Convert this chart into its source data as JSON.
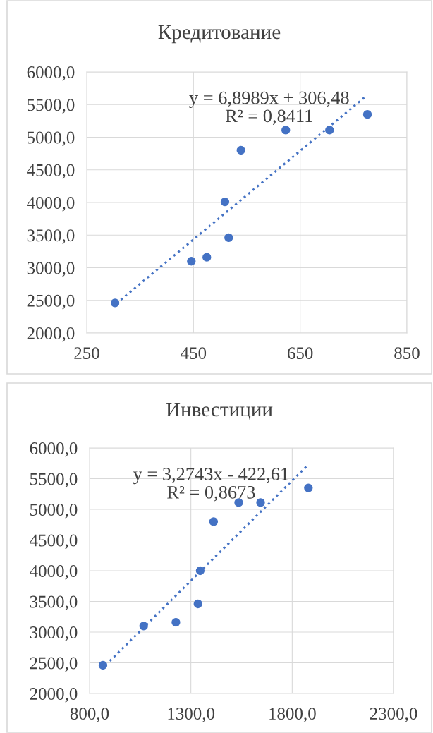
{
  "chart_data": [
    {
      "type": "scatter",
      "title": "Кредитование",
      "grid": true,
      "xlim": [
        250,
        850
      ],
      "xticks": [
        250,
        450,
        650,
        850
      ],
      "ylim": [
        2000,
        6000
      ],
      "yticks": [
        {
          "value": 2000,
          "label": "2000,0"
        },
        {
          "value": 2500,
          "label": "2500,0"
        },
        {
          "value": 3000,
          "label": "3000,0"
        },
        {
          "value": 3500,
          "label": "3500,0"
        },
        {
          "value": 4000,
          "label": "4000,0"
        },
        {
          "value": 4500,
          "label": "4500,0"
        },
        {
          "value": 5000,
          "label": "5000,0"
        },
        {
          "value": 5500,
          "label": "5500,0"
        },
        {
          "value": 6000,
          "label": "6000,0"
        }
      ],
      "series": [
        {
          "color": "#4472c4",
          "marker": "circle",
          "x": [
            303,
            446,
            475,
            509,
            516,
            539,
            623,
            705,
            776
          ],
          "values": [
            2460,
            3100,
            3160,
            4010,
            3460,
            4800,
            5110,
            5110,
            5350
          ]
        },
        {
          "type": "line",
          "color": "#4472c4",
          "line_style": "dotted",
          "x": [
            314,
            775
          ],
          "values": [
            2510,
            5640
          ]
        }
      ],
      "annotations": [
        "y = 6,8989x + 306,48\nR² = 0,8411"
      ]
    },
    {
      "type": "scatter",
      "title": "Инвестиции",
      "grid": true,
      "xlim": [
        800,
        2300
      ],
      "xticks": [
        {
          "value": 800,
          "label": "800,0"
        },
        {
          "value": 1300,
          "label": "1300,0"
        },
        {
          "value": 1800,
          "label": "1800,0"
        },
        {
          "value": 2300,
          "label": "2300,0"
        }
      ],
      "ylim": [
        2000,
        6000
      ],
      "yticks": [
        {
          "value": 2000,
          "label": "2000,0"
        },
        {
          "value": 2500,
          "label": "2500,0"
        },
        {
          "value": 3000,
          "label": "3000,0"
        },
        {
          "value": 3500,
          "label": "3500,0"
        },
        {
          "value": 4000,
          "label": "4000,0"
        },
        {
          "value": 4500,
          "label": "4500,0"
        },
        {
          "value": 5000,
          "label": "5000,0"
        },
        {
          "value": 5500,
          "label": "5500,0"
        },
        {
          "value": 6000,
          "label": "6000,0"
        }
      ],
      "series": [
        {
          "color": "#4472c4",
          "marker": "circle",
          "x": [
            866,
            1067,
            1226,
            1335,
            1346,
            1412,
            1536,
            1644,
            1880
          ],
          "values": [
            2460,
            3100,
            3160,
            3460,
            4000,
            4800,
            5110,
            5110,
            5350
          ]
        },
        {
          "type": "line",
          "color": "#4472c4",
          "line_style": "dotted",
          "x": [
            900,
            1880
          ],
          "values": [
            2530,
            5730
          ]
        }
      ],
      "annotations": [
        "y = 3,2743x - 422,61\nR² = 0,8673"
      ]
    }
  ]
}
